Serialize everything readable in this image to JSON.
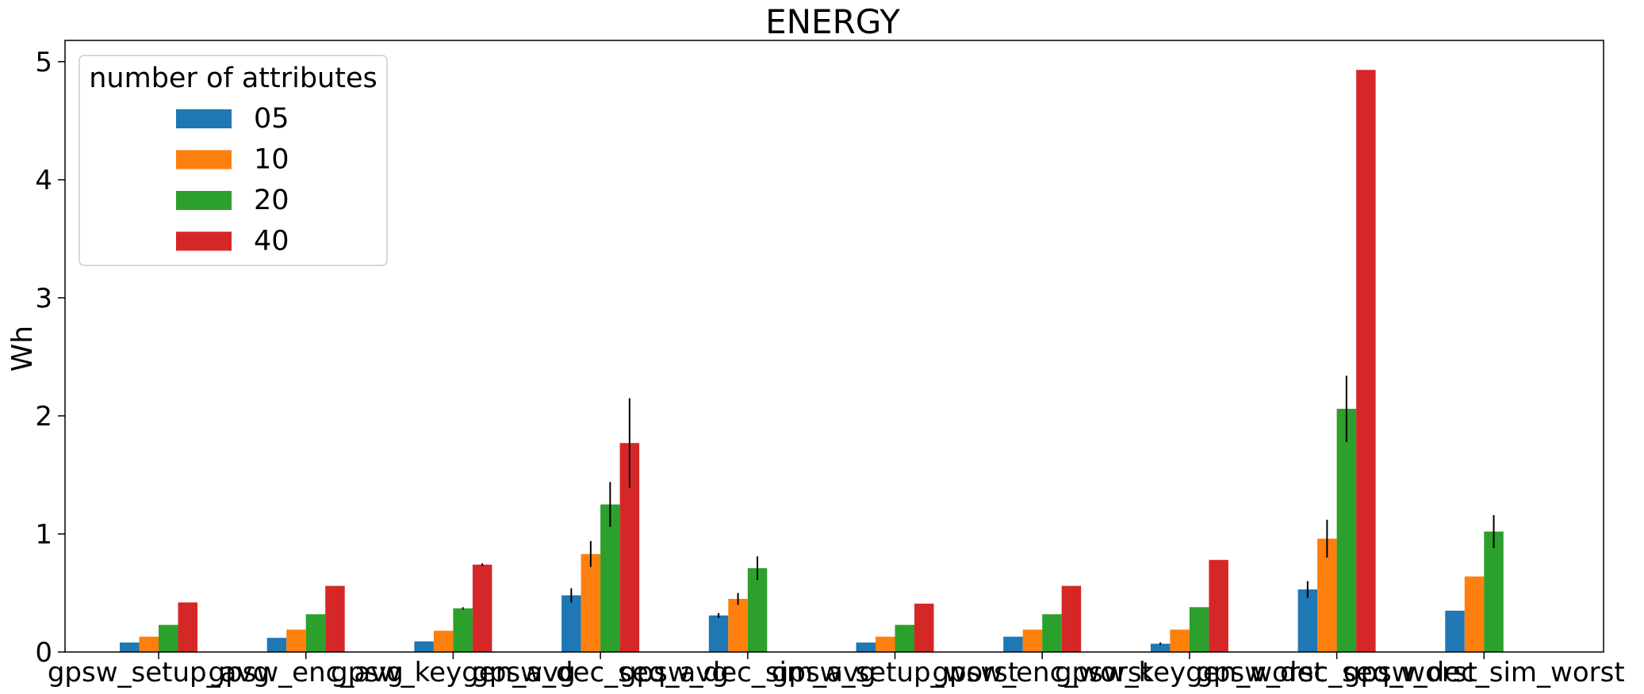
{
  "chart_data": {
    "type": "bar",
    "title": "ENERGY",
    "xlabel": "",
    "ylabel": "Wh",
    "ylim": [
      0,
      5.18
    ],
    "yticks": [
      0,
      1,
      2,
      3,
      4,
      5
    ],
    "grid": false,
    "legend": {
      "title": "number of attributes",
      "placement": "top-left"
    },
    "categories": [
      "gpsw_setup_avg",
      "gpsw_enc_avg",
      "gpsw_keygen_avg",
      "gpsw_dec_seq_avg",
      "gpsw_dec_sim_avg",
      "gpsw_setup_worst",
      "gpsw_enc_worst",
      "gpsw_keygen_worst",
      "gpsw_dec_seq_worst",
      "gpsw_dec_sim_worst"
    ],
    "series": [
      {
        "name": "05",
        "color": "#1f77b4",
        "values": [
          0.08,
          0.12,
          0.09,
          0.48,
          0.31,
          0.08,
          0.13,
          0.07,
          0.53,
          0.35
        ],
        "errors": [
          0,
          0,
          0,
          0.06,
          0.02,
          0,
          0,
          0.01,
          0.07,
          0
        ]
      },
      {
        "name": "10",
        "color": "#ff7f0e",
        "values": [
          0.13,
          0.19,
          0.18,
          0.83,
          0.45,
          0.13,
          0.19,
          0.19,
          0.96,
          0.64
        ],
        "errors": [
          0,
          0,
          0,
          0.11,
          0.05,
          0,
          0,
          0,
          0.16,
          0
        ]
      },
      {
        "name": "20",
        "color": "#2ca02c",
        "values": [
          0.23,
          0.32,
          0.37,
          1.25,
          0.71,
          0.23,
          0.32,
          0.38,
          2.06,
          1.02
        ],
        "errors": [
          0,
          0,
          0.01,
          0.19,
          0.1,
          0,
          0,
          0,
          0.28,
          0.14
        ]
      },
      {
        "name": "40",
        "color": "#d62728",
        "values": [
          0.42,
          0.56,
          0.74,
          1.77,
          null,
          0.41,
          0.56,
          0.78,
          4.93,
          null
        ],
        "errors": [
          0,
          0,
          0.01,
          0.38,
          0,
          0,
          0,
          0,
          0,
          0
        ]
      }
    ]
  }
}
